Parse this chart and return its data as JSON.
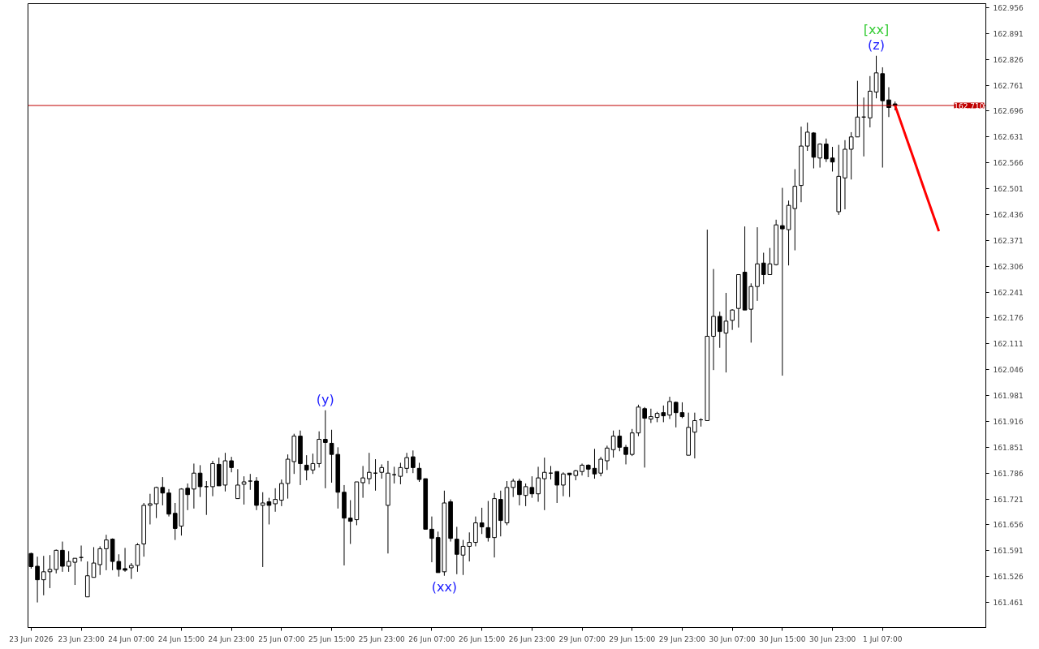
{
  "chart_data": {
    "type": "candlestick",
    "categories": [
      "23 Jun 2026",
      null,
      null,
      null,
      null,
      null,
      null,
      null,
      "23 Jun 23:00",
      null,
      null,
      null,
      null,
      null,
      null,
      null,
      "24 Jun 07:00",
      null,
      null,
      null,
      null,
      null,
      null,
      null,
      "24 Jun 15:00",
      null,
      null,
      null,
      null,
      null,
      null,
      null,
      "24 Jun 23:00",
      null,
      null,
      null,
      null,
      null,
      null,
      null,
      "25 Jun 07:00",
      null,
      null,
      null,
      null,
      null,
      null,
      null,
      "25 Jun 15:00",
      null,
      null,
      null,
      null,
      null,
      null,
      null,
      "25 Jun 23:00",
      null,
      null,
      null,
      null,
      null,
      null,
      null,
      "26 Jun 07:00",
      null,
      null,
      null,
      null,
      null,
      null,
      null,
      "26 Jun 15:00",
      null,
      null,
      null,
      null,
      null,
      null,
      null,
      "26 Jun 23:00",
      null,
      null,
      null,
      null,
      null,
      null,
      null,
      "29 Jun 07:00",
      null,
      null,
      null,
      null,
      null,
      null,
      null,
      "29 Jun 15:00",
      null,
      null,
      null,
      null,
      null,
      null,
      null,
      "29 Jun 23:00",
      null,
      null,
      null,
      null,
      null,
      null,
      null,
      "30 Jun 07:00",
      null,
      null,
      null,
      null,
      null,
      null,
      null,
      "30 Jun 15:00",
      null,
      null,
      null,
      null,
      null,
      null,
      null,
      "30 Jun 23:00",
      null,
      null,
      null,
      null,
      null,
      null,
      null,
      "1 Jul 07:00",
      null,
      null,
      null,
      null,
      null,
      null,
      null,
      null,
      null,
      null,
      null,
      null,
      null,
      null,
      null,
      null
    ],
    "ohlc": [
      [
        161.584,
        161.586,
        161.546,
        161.551
      ],
      [
        161.552,
        161.576,
        161.461,
        161.518
      ],
      [
        161.518,
        161.578,
        161.479,
        161.538
      ],
      [
        161.538,
        161.58,
        161.497,
        161.544
      ],
      [
        161.544,
        161.594,
        161.534,
        161.592
      ],
      [
        161.592,
        161.614,
        161.538,
        161.552
      ],
      [
        161.552,
        161.59,
        161.538,
        161.564
      ],
      [
        161.562,
        161.572,
        161.505,
        161.572
      ],
      [
        161.574,
        161.604,
        161.564,
        161.574
      ],
      [
        161.475,
        161.564,
        161.475,
        161.528
      ],
      [
        161.524,
        161.6,
        161.524,
        161.56
      ],
      [
        161.556,
        161.602,
        161.53,
        161.596
      ],
      [
        161.596,
        161.631,
        161.542,
        161.618
      ],
      [
        161.62,
        161.622,
        161.542,
        161.564
      ],
      [
        161.564,
        161.582,
        161.526,
        161.544
      ],
      [
        161.546,
        161.598,
        161.538,
        161.542
      ],
      [
        161.548,
        161.56,
        161.52,
        161.554
      ],
      [
        161.554,
        161.61,
        161.538,
        161.606
      ],
      [
        161.608,
        161.711,
        161.576,
        161.705
      ],
      [
        161.705,
        161.734,
        161.657,
        161.709
      ],
      [
        161.709,
        161.752,
        161.673,
        161.75
      ],
      [
        161.75,
        161.776,
        161.705,
        161.736
      ],
      [
        161.736,
        161.746,
        161.677,
        161.683
      ],
      [
        161.685,
        161.711,
        161.618,
        161.647
      ],
      [
        161.653,
        161.748,
        161.629,
        161.746
      ],
      [
        161.748,
        161.76,
        161.693,
        161.732
      ],
      [
        161.746,
        161.81,
        161.697,
        161.786
      ],
      [
        161.786,
        161.806,
        161.726,
        161.752
      ],
      [
        161.752,
        161.766,
        161.681,
        161.752
      ],
      [
        161.752,
        161.817,
        161.728,
        161.81
      ],
      [
        161.808,
        161.825,
        161.754,
        161.754
      ],
      [
        161.756,
        161.837,
        161.74,
        161.817
      ],
      [
        161.817,
        161.827,
        161.788,
        161.8
      ],
      [
        161.722,
        161.796,
        161.722,
        161.756
      ],
      [
        161.758,
        161.778,
        161.707,
        161.764
      ],
      [
        161.766,
        161.784,
        161.744,
        161.766
      ],
      [
        161.766,
        161.776,
        161.693,
        161.705
      ],
      [
        161.705,
        161.738,
        161.55,
        161.711
      ],
      [
        161.714,
        161.724,
        161.657,
        161.705
      ],
      [
        161.709,
        161.748,
        161.689,
        161.72
      ],
      [
        161.718,
        161.77,
        161.703,
        161.76
      ],
      [
        161.76,
        161.833,
        161.722,
        161.821
      ],
      [
        161.815,
        161.885,
        161.784,
        161.879
      ],
      [
        161.879,
        161.893,
        161.756,
        161.81
      ],
      [
        161.806,
        161.831,
        161.768,
        161.794
      ],
      [
        161.794,
        161.835,
        161.784,
        161.81
      ],
      [
        161.81,
        161.891,
        161.8,
        161.871
      ],
      [
        161.871,
        161.944,
        161.748,
        161.863
      ],
      [
        161.861,
        161.895,
        161.762,
        161.833
      ],
      [
        161.833,
        161.851,
        161.697,
        161.738
      ],
      [
        161.738,
        161.756,
        161.554,
        161.673
      ],
      [
        161.673,
        161.718,
        161.608,
        161.665
      ],
      [
        161.669,
        161.764,
        161.655,
        161.764
      ],
      [
        161.762,
        161.804,
        161.724,
        161.774
      ],
      [
        161.772,
        161.837,
        161.758,
        161.788
      ],
      [
        161.786,
        161.821,
        161.742,
        161.786
      ],
      [
        161.788,
        161.808,
        161.772,
        161.8
      ],
      [
        161.705,
        161.817,
        161.584,
        161.786
      ],
      [
        161.782,
        161.802,
        161.76,
        161.782
      ],
      [
        161.778,
        161.812,
        161.758,
        161.8
      ],
      [
        161.798,
        161.837,
        161.786,
        161.825
      ],
      [
        161.827,
        161.843,
        161.786,
        161.8
      ],
      [
        161.798,
        161.812,
        161.764,
        161.77
      ],
      [
        161.772,
        161.772,
        161.645,
        161.645
      ],
      [
        161.645,
        161.677,
        161.562,
        161.622
      ],
      [
        161.624,
        161.639,
        161.536,
        161.536
      ],
      [
        161.538,
        161.742,
        161.528,
        161.711
      ],
      [
        161.714,
        161.72,
        161.614,
        161.622
      ],
      [
        161.62,
        161.651,
        161.532,
        161.582
      ],
      [
        161.58,
        161.618,
        161.53,
        161.602
      ],
      [
        161.602,
        161.637,
        161.564,
        161.612
      ],
      [
        161.612,
        161.677,
        161.602,
        161.661
      ],
      [
        161.661,
        161.699,
        161.633,
        161.651
      ],
      [
        161.649,
        161.716,
        161.614,
        161.624
      ],
      [
        161.624,
        161.736,
        161.574,
        161.722
      ],
      [
        161.72,
        161.742,
        161.627,
        161.667
      ],
      [
        161.661,
        161.766,
        161.655,
        161.75
      ],
      [
        161.75,
        161.772,
        161.726,
        161.766
      ],
      [
        161.766,
        161.772,
        161.705,
        161.732
      ],
      [
        161.73,
        161.76,
        161.703,
        161.752
      ],
      [
        161.75,
        161.778,
        161.724,
        161.734
      ],
      [
        161.734,
        161.802,
        161.714,
        161.774
      ],
      [
        161.772,
        161.825,
        161.693,
        161.788
      ],
      [
        161.786,
        161.804,
        161.77,
        161.786
      ],
      [
        161.79,
        161.79,
        161.711,
        161.756
      ],
      [
        161.756,
        161.788,
        161.728,
        161.784
      ],
      [
        161.786,
        161.786,
        161.726,
        161.782
      ],
      [
        161.78,
        161.794,
        161.768,
        161.792
      ],
      [
        161.79,
        161.81,
        161.78,
        161.806
      ],
      [
        161.806,
        161.808,
        161.776,
        161.796
      ],
      [
        161.798,
        161.847,
        161.772,
        161.784
      ],
      [
        161.786,
        161.827,
        161.778,
        161.821
      ],
      [
        161.817,
        161.855,
        161.794,
        161.849
      ],
      [
        161.845,
        161.893,
        161.825,
        161.879
      ],
      [
        161.879,
        161.895,
        161.841,
        161.851
      ],
      [
        161.851,
        161.857,
        161.808,
        161.833
      ],
      [
        161.833,
        161.897,
        161.829,
        161.887
      ],
      [
        161.887,
        161.958,
        161.879,
        161.952
      ],
      [
        161.948,
        161.952,
        161.8,
        161.924
      ],
      [
        161.922,
        161.948,
        161.912,
        161.928
      ],
      [
        161.926,
        161.94,
        161.914,
        161.936
      ],
      [
        161.938,
        161.956,
        161.914,
        161.93
      ],
      [
        161.932,
        161.978,
        161.922,
        161.966
      ],
      [
        161.964,
        161.966,
        161.901,
        161.938
      ],
      [
        161.938,
        161.964,
        161.924,
        161.928
      ],
      [
        161.831,
        161.938,
        161.831,
        161.901
      ],
      [
        161.889,
        161.938,
        161.823,
        161.918
      ],
      [
        161.92,
        161.924,
        161.903,
        161.92
      ],
      [
        161.918,
        162.398,
        161.918,
        162.13
      ],
      [
        162.13,
        162.299,
        162.045,
        162.18
      ],
      [
        162.18,
        162.192,
        162.101,
        162.142
      ],
      [
        162.138,
        162.239,
        162.039,
        162.168
      ],
      [
        162.17,
        162.198,
        162.146,
        162.196
      ],
      [
        162.2,
        162.285,
        162.152,
        162.285
      ],
      [
        162.291,
        162.406,
        162.196,
        162.196
      ],
      [
        162.198,
        162.263,
        162.114,
        162.255
      ],
      [
        162.255,
        162.404,
        162.219,
        162.312
      ],
      [
        162.314,
        162.34,
        162.261,
        162.285
      ],
      [
        162.285,
        162.352,
        162.285,
        162.312
      ],
      [
        162.31,
        162.423,
        162.308,
        162.41
      ],
      [
        162.408,
        162.503,
        162.031,
        162.4
      ],
      [
        162.398,
        162.471,
        162.308,
        162.459
      ],
      [
        162.451,
        162.55,
        162.346,
        162.507
      ],
      [
        162.509,
        162.657,
        162.467,
        162.608
      ],
      [
        162.608,
        162.667,
        162.596,
        162.643
      ],
      [
        162.641,
        162.643,
        162.552,
        162.58
      ],
      [
        162.578,
        162.615,
        162.554,
        162.613
      ],
      [
        162.613,
        162.627,
        162.568,
        162.576
      ],
      [
        162.578,
        162.606,
        162.544,
        162.568
      ],
      [
        162.443,
        162.611,
        162.435,
        162.532
      ],
      [
        162.528,
        162.623,
        162.449,
        162.6
      ],
      [
        162.6,
        162.643,
        162.524,
        162.631
      ],
      [
        162.631,
        162.772,
        162.631,
        162.681
      ],
      [
        162.681,
        162.73,
        162.582,
        162.681
      ],
      [
        162.679,
        162.784,
        162.655,
        162.746
      ],
      [
        162.744,
        162.835,
        162.728,
        162.792
      ],
      [
        162.79,
        162.806,
        162.554,
        162.722
      ],
      [
        162.724,
        162.756,
        162.681,
        162.705
      ],
      [
        162.714,
        162.72,
        162.698,
        162.71
      ],
      null,
      null,
      null,
      null,
      null,
      null,
      null,
      null,
      null,
      null,
      null,
      null,
      null,
      null
    ],
    "color": "#000000",
    "ylim": [
      161.398,
      162.966
    ],
    "yticks": [
      161.461,
      161.526,
      161.591,
      161.656,
      161.721,
      161.786,
      161.851,
      161.916,
      161.981,
      162.046,
      162.111,
      162.176,
      162.241,
      162.306,
      162.371,
      162.436,
      162.501,
      162.566,
      162.631,
      162.696,
      162.761,
      162.826,
      162.891,
      162.956
    ],
    "ref_lines": [
      {
        "axis": "y",
        "value": 162.71,
        "label": "162.710",
        "color": "#c00000"
      }
    ],
    "series": [
      {
        "type": "line",
        "color": "#ff0000",
        "values": [
          null,
          null,
          null,
          null,
          null,
          null,
          null,
          null,
          null,
          null,
          null,
          null,
          null,
          null,
          null,
          null,
          null,
          null,
          null,
          null,
          null,
          null,
          null,
          null,
          null,
          null,
          null,
          null,
          null,
          null,
          null,
          null,
          null,
          null,
          null,
          null,
          null,
          null,
          null,
          null,
          null,
          null,
          null,
          null,
          null,
          null,
          null,
          null,
          null,
          null,
          null,
          null,
          null,
          null,
          null,
          null,
          null,
          null,
          null,
          null,
          null,
          null,
          null,
          null,
          null,
          null,
          null,
          null,
          null,
          null,
          null,
          null,
          null,
          null,
          null,
          null,
          null,
          null,
          null,
          null,
          null,
          null,
          null,
          null,
          null,
          null,
          null,
          null,
          null,
          null,
          null,
          null,
          null,
          null,
          null,
          null,
          null,
          null,
          null,
          null,
          null,
          null,
          null,
          null,
          null,
          null,
          null,
          null,
          null,
          null,
          null,
          null,
          null,
          null,
          null,
          null,
          null,
          null,
          null,
          null,
          null,
          null,
          null,
          null,
          null,
          null,
          null,
          null,
          null,
          null,
          null,
          null,
          null,
          null,
          null,
          null,
          null,
          null,
          162.71,
          162.665,
          162.62,
          162.575,
          162.529,
          162.484,
          162.439,
          162.394,
          null,
          null,
          null,
          null,
          null,
          null,
          null
        ]
      }
    ],
    "annotations": [
      {
        "text": "(y)",
        "y": 161.944
      },
      {
        "text": "(xx)",
        "y": 161.528
      },
      {
        "text": "(z)",
        "y": 162.835
      },
      {
        "text": "[xx]",
        "y": 162.835
      }
    ]
  }
}
